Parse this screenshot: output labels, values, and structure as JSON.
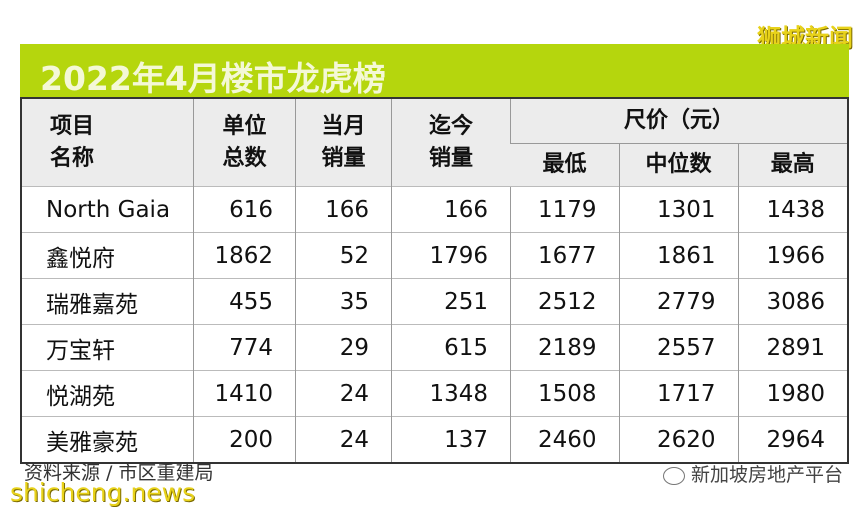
{
  "watermark_top": "狮城新闻",
  "title": "2022年4月楼市龙虎榜",
  "headers": {
    "name": "项目\n名称",
    "units": "单位\n总数",
    "month": "当月\n销量",
    "todate": "迄今\n销量",
    "price": "尺价（元）",
    "low": "最低",
    "median": "中位数",
    "high": "最高"
  },
  "rows": [
    [
      "North Gaia",
      "616",
      "166",
      "166",
      "1179",
      "1301",
      "1438"
    ],
    [
      "鑫悦府",
      "1862",
      "52",
      "1796",
      "1677",
      "1861",
      "1966"
    ],
    [
      "瑞雅嘉苑",
      "455",
      "35",
      "251",
      "2512",
      "2779",
      "3086"
    ],
    [
      "万宝轩",
      "774",
      "29",
      "615",
      "2189",
      "2557",
      "2891"
    ],
    [
      "悦湖苑",
      "1410",
      "24",
      "1348",
      "1508",
      "1717",
      "1980"
    ],
    [
      "美雅豪苑",
      "200",
      "24",
      "137",
      "2460",
      "2620",
      "2964"
    ]
  ],
  "source": "资料来源 / 市区重建局",
  "watermark_bottom": "shicheng.news",
  "watermark_right": "新加坡房地产平台",
  "colors": {
    "banner": "#b5d60d",
    "watermark": "#e8d21a"
  }
}
